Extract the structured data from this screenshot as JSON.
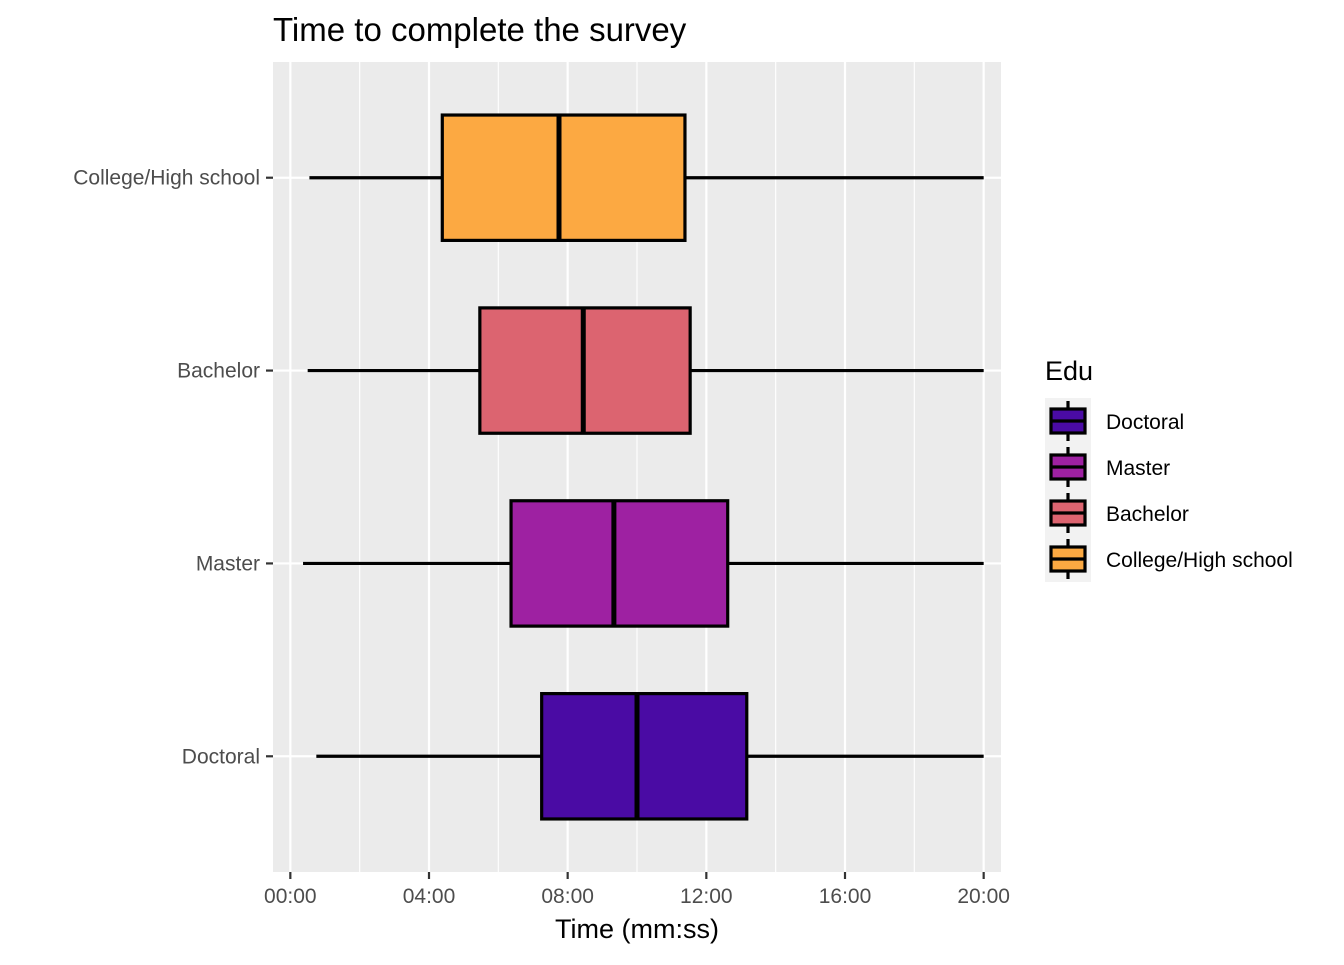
{
  "chart_data": {
    "type": "boxplot",
    "title": "Time to complete the survey",
    "xlabel": "Time (mm:ss)",
    "ylabel": "",
    "xlim_seconds": [
      -30,
      1230
    ],
    "x_ticks_seconds": [
      0,
      240,
      480,
      720,
      960,
      1200
    ],
    "x_tick_labels": [
      "00:00",
      "04:00",
      "08:00",
      "12:00",
      "16:00",
      "20:00"
    ],
    "grid": true,
    "legend": {
      "title": "Edu",
      "position": "right",
      "entries": [
        "Doctoral",
        "Master",
        "Bachelor",
        "College/High school"
      ]
    },
    "categories": [
      "Doctoral",
      "Master",
      "Bachelor",
      "College/High school"
    ],
    "series": [
      {
        "name": "Doctoral",
        "color": "#4a0ba4",
        "min": 45,
        "q1": 435,
        "median": 600,
        "q3": 790,
        "max": 1200
      },
      {
        "name": "Master",
        "color": "#9e21a2",
        "min": 22,
        "q1": 382,
        "median": 560,
        "q3": 757,
        "max": 1200
      },
      {
        "name": "Bachelor",
        "color": "#dc6470",
        "min": 30,
        "q1": 328,
        "median": 507,
        "q3": 692,
        "max": 1200
      },
      {
        "name": "College/High school",
        "color": "#fca942",
        "min": 33,
        "q1": 263,
        "median": 465,
        "q3": 683,
        "max": 1200
      }
    ]
  }
}
